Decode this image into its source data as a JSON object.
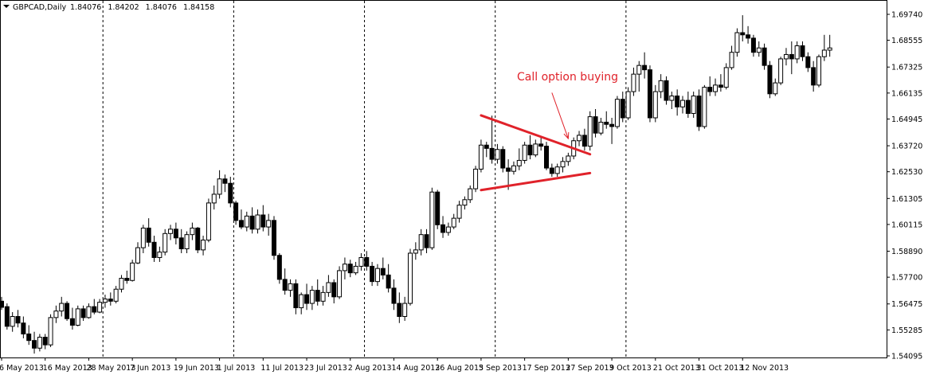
{
  "chart_data": {
    "type": "candlestick",
    "title": "GBPCAD,Daily",
    "ohlc_header": [
      "1.84076",
      "1.84202",
      "1.84076",
      "1.84158"
    ],
    "x_tick_labels": [
      "6 May 2013",
      "16 May 2013",
      "28 May 2013",
      "7 Jun 2013",
      "19 Jun 2013",
      "1 Jul 2013",
      "11 Jul 2013",
      "23 Jul 2013",
      "2 Aug 2013",
      "14 Aug 2013",
      "26 Aug 2013",
      "5 Sep 2013",
      "17 Sep 2013",
      "27 Sep 2013",
      "9 Oct 2013",
      "21 Oct 2013",
      "31 Oct 2013",
      "12 Nov 2013"
    ],
    "y_tick_labels": [
      "1.69740",
      "1.68555",
      "1.67325",
      "1.66135",
      "1.64945",
      "1.63720",
      "1.62530",
      "1.61305",
      "1.60115",
      "1.58890",
      "1.57700",
      "1.56475",
      "1.55285",
      "1.54095"
    ],
    "ylim": [
      1.5395,
      1.7029
    ],
    "grid": true,
    "colors": {
      "bull_body": "#ffffff",
      "bear_body": "#000000",
      "outline": "#000000",
      "annotation": "#e0222a"
    },
    "annotation": {
      "text": "Call option buying"
    },
    "pattern": {
      "name": "symmetrical-triangle",
      "upper_line": {
        "from": {
          "index": 88,
          "price": 1.6511
        },
        "to": {
          "index": 108,
          "price": 1.6333
        }
      },
      "lower_line": {
        "from": {
          "index": 88,
          "price": 1.6169
        },
        "to": {
          "index": 108,
          "price": 1.6247
        }
      },
      "arrow": {
        "from": {
          "index": 101,
          "price": 1.6615
        },
        "to": {
          "index": 104,
          "price": 1.6405
        }
      }
    },
    "candles": [
      {
        "o": 1.566,
        "h": 1.568,
        "l": 1.562,
        "c": 1.5632
      },
      {
        "o": 1.5635,
        "h": 1.565,
        "l": 1.553,
        "c": 1.5545
      },
      {
        "o": 1.5545,
        "h": 1.561,
        "l": 1.552,
        "c": 1.559
      },
      {
        "o": 1.559,
        "h": 1.562,
        "l": 1.554,
        "c": 1.556
      },
      {
        "o": 1.556,
        "h": 1.559,
        "l": 1.549,
        "c": 1.551
      },
      {
        "o": 1.551,
        "h": 1.555,
        "l": 1.546,
        "c": 1.548
      },
      {
        "o": 1.548,
        "h": 1.552,
        "l": 1.542,
        "c": 1.5445
      },
      {
        "o": 1.5445,
        "h": 1.551,
        "l": 1.543,
        "c": 1.5495
      },
      {
        "o": 1.5495,
        "h": 1.551,
        "l": 1.544,
        "c": 1.546
      },
      {
        "o": 1.546,
        "h": 1.56,
        "l": 1.545,
        "c": 1.5585
      },
      {
        "o": 1.5585,
        "h": 1.564,
        "l": 1.556,
        "c": 1.5615
      },
      {
        "o": 1.5615,
        "h": 1.568,
        "l": 1.559,
        "c": 1.565
      },
      {
        "o": 1.565,
        "h": 1.566,
        "l": 1.557,
        "c": 1.558
      },
      {
        "o": 1.558,
        "h": 1.563,
        "l": 1.553,
        "c": 1.555
      },
      {
        "o": 1.555,
        "h": 1.564,
        "l": 1.5545,
        "c": 1.5625
      },
      {
        "o": 1.5625,
        "h": 1.564,
        "l": 1.557,
        "c": 1.5585
      },
      {
        "o": 1.5585,
        "h": 1.565,
        "l": 1.558,
        "c": 1.5635
      },
      {
        "o": 1.5635,
        "h": 1.567,
        "l": 1.56,
        "c": 1.561
      },
      {
        "o": 1.561,
        "h": 1.567,
        "l": 1.5605,
        "c": 1.5655
      },
      {
        "o": 1.5655,
        "h": 1.569,
        "l": 1.563,
        "c": 1.567
      },
      {
        "o": 1.567,
        "h": 1.57,
        "l": 1.564,
        "c": 1.566
      },
      {
        "o": 1.566,
        "h": 1.573,
        "l": 1.565,
        "c": 1.5715
      },
      {
        "o": 1.5715,
        "h": 1.578,
        "l": 1.57,
        "c": 1.5765
      },
      {
        "o": 1.5765,
        "h": 1.58,
        "l": 1.574,
        "c": 1.5755
      },
      {
        "o": 1.5755,
        "h": 1.585,
        "l": 1.575,
        "c": 1.5835
      },
      {
        "o": 1.5835,
        "h": 1.593,
        "l": 1.583,
        "c": 1.5905
      },
      {
        "o": 1.5905,
        "h": 1.601,
        "l": 1.588,
        "c": 1.5995
      },
      {
        "o": 1.5995,
        "h": 1.604,
        "l": 1.591,
        "c": 1.593
      },
      {
        "o": 1.593,
        "h": 1.596,
        "l": 1.584,
        "c": 1.586
      },
      {
        "o": 1.586,
        "h": 1.591,
        "l": 1.584,
        "c": 1.5885
      },
      {
        "o": 1.5885,
        "h": 1.599,
        "l": 1.587,
        "c": 1.597
      },
      {
        "o": 1.597,
        "h": 1.601,
        "l": 1.594,
        "c": 1.599
      },
      {
        "o": 1.599,
        "h": 1.602,
        "l": 1.592,
        "c": 1.595
      },
      {
        "o": 1.595,
        "h": 1.599,
        "l": 1.588,
        "c": 1.59
      },
      {
        "o": 1.59,
        "h": 1.598,
        "l": 1.588,
        "c": 1.5965
      },
      {
        "o": 1.5965,
        "h": 1.602,
        "l": 1.594,
        "c": 1.5995
      },
      {
        "o": 1.5995,
        "h": 1.6,
        "l": 1.588,
        "c": 1.5895
      },
      {
        "o": 1.5895,
        "h": 1.596,
        "l": 1.587,
        "c": 1.594
      },
      {
        "o": 1.594,
        "h": 1.613,
        "l": 1.593,
        "c": 1.611
      },
      {
        "o": 1.611,
        "h": 1.619,
        "l": 1.608,
        "c": 1.615
      },
      {
        "o": 1.615,
        "h": 1.626,
        "l": 1.613,
        "c": 1.622
      },
      {
        "o": 1.622,
        "h": 1.624,
        "l": 1.616,
        "c": 1.62
      },
      {
        "o": 1.62,
        "h": 1.623,
        "l": 1.609,
        "c": 1.611
      },
      {
        "o": 1.611,
        "h": 1.612,
        "l": 1.601,
        "c": 1.603
      },
      {
        "o": 1.603,
        "h": 1.608,
        "l": 1.599,
        "c": 1.6
      },
      {
        "o": 1.6,
        "h": 1.607,
        "l": 1.598,
        "c": 1.605
      },
      {
        "o": 1.605,
        "h": 1.609,
        "l": 1.597,
        "c": 1.599
      },
      {
        "o": 1.599,
        "h": 1.608,
        "l": 1.597,
        "c": 1.6055
      },
      {
        "o": 1.6055,
        "h": 1.61,
        "l": 1.598,
        "c": 1.6
      },
      {
        "o": 1.6,
        "h": 1.606,
        "l": 1.596,
        "c": 1.603
      },
      {
        "o": 1.603,
        "h": 1.605,
        "l": 1.585,
        "c": 1.587
      },
      {
        "o": 1.587,
        "h": 1.588,
        "l": 1.574,
        "c": 1.576
      },
      {
        "o": 1.576,
        "h": 1.581,
        "l": 1.569,
        "c": 1.571
      },
      {
        "o": 1.571,
        "h": 1.576,
        "l": 1.568,
        "c": 1.574
      },
      {
        "o": 1.574,
        "h": 1.576,
        "l": 1.56,
        "c": 1.563
      },
      {
        "o": 1.563,
        "h": 1.57,
        "l": 1.56,
        "c": 1.569
      },
      {
        "o": 1.569,
        "h": 1.574,
        "l": 1.562,
        "c": 1.565
      },
      {
        "o": 1.565,
        "h": 1.573,
        "l": 1.562,
        "c": 1.571
      },
      {
        "o": 1.571,
        "h": 1.576,
        "l": 1.564,
        "c": 1.566
      },
      {
        "o": 1.566,
        "h": 1.573,
        "l": 1.564,
        "c": 1.57
      },
      {
        "o": 1.57,
        "h": 1.578,
        "l": 1.568,
        "c": 1.5745
      },
      {
        "o": 1.5745,
        "h": 1.576,
        "l": 1.565,
        "c": 1.568
      },
      {
        "o": 1.568,
        "h": 1.582,
        "l": 1.567,
        "c": 1.58
      },
      {
        "o": 1.58,
        "h": 1.586,
        "l": 1.576,
        "c": 1.583
      },
      {
        "o": 1.583,
        "h": 1.585,
        "l": 1.577,
        "c": 1.579
      },
      {
        "o": 1.579,
        "h": 1.584,
        "l": 1.578,
        "c": 1.582
      },
      {
        "o": 1.582,
        "h": 1.588,
        "l": 1.58,
        "c": 1.586
      },
      {
        "o": 1.586,
        "h": 1.589,
        "l": 1.58,
        "c": 1.582
      },
      {
        "o": 1.582,
        "h": 1.584,
        "l": 1.573,
        "c": 1.575
      },
      {
        "o": 1.575,
        "h": 1.583,
        "l": 1.573,
        "c": 1.581
      },
      {
        "o": 1.581,
        "h": 1.586,
        "l": 1.576,
        "c": 1.578
      },
      {
        "o": 1.578,
        "h": 1.583,
        "l": 1.57,
        "c": 1.572
      },
      {
        "o": 1.572,
        "h": 1.576,
        "l": 1.562,
        "c": 1.565
      },
      {
        "o": 1.565,
        "h": 1.57,
        "l": 1.556,
        "c": 1.559
      },
      {
        "o": 1.559,
        "h": 1.568,
        "l": 1.557,
        "c": 1.565
      },
      {
        "o": 1.565,
        "h": 1.59,
        "l": 1.564,
        "c": 1.588
      },
      {
        "o": 1.588,
        "h": 1.593,
        "l": 1.585,
        "c": 1.5895
      },
      {
        "o": 1.5895,
        "h": 1.599,
        "l": 1.587,
        "c": 1.5965
      },
      {
        "o": 1.5965,
        "h": 1.599,
        "l": 1.588,
        "c": 1.5905
      },
      {
        "o": 1.5905,
        "h": 1.618,
        "l": 1.5895,
        "c": 1.616
      },
      {
        "o": 1.616,
        "h": 1.617,
        "l": 1.599,
        "c": 1.601
      },
      {
        "o": 1.601,
        "h": 1.605,
        "l": 1.595,
        "c": 1.5975
      },
      {
        "o": 1.5975,
        "h": 1.602,
        "l": 1.596,
        "c": 1.6
      },
      {
        "o": 1.6,
        "h": 1.606,
        "l": 1.599,
        "c": 1.604
      },
      {
        "o": 1.604,
        "h": 1.612,
        "l": 1.602,
        "c": 1.61
      },
      {
        "o": 1.61,
        "h": 1.614,
        "l": 1.608,
        "c": 1.6125
      },
      {
        "o": 1.6125,
        "h": 1.619,
        "l": 1.611,
        "c": 1.6175
      },
      {
        "o": 1.6175,
        "h": 1.628,
        "l": 1.616,
        "c": 1.6265
      },
      {
        "o": 1.6265,
        "h": 1.64,
        "l": 1.625,
        "c": 1.6375
      },
      {
        "o": 1.6375,
        "h": 1.639,
        "l": 1.632,
        "c": 1.636
      },
      {
        "o": 1.636,
        "h": 1.651,
        "l": 1.629,
        "c": 1.631
      },
      {
        "o": 1.631,
        "h": 1.638,
        "l": 1.629,
        "c": 1.6355
      },
      {
        "o": 1.6355,
        "h": 1.637,
        "l": 1.625,
        "c": 1.627
      },
      {
        "o": 1.627,
        "h": 1.631,
        "l": 1.617,
        "c": 1.6255
      },
      {
        "o": 1.6255,
        "h": 1.63,
        "l": 1.624,
        "c": 1.628
      },
      {
        "o": 1.628,
        "h": 1.636,
        "l": 1.626,
        "c": 1.6305
      },
      {
        "o": 1.6305,
        "h": 1.639,
        "l": 1.629,
        "c": 1.6375
      },
      {
        "o": 1.6375,
        "h": 1.642,
        "l": 1.631,
        "c": 1.633
      },
      {
        "o": 1.633,
        "h": 1.64,
        "l": 1.632,
        "c": 1.638
      },
      {
        "o": 1.638,
        "h": 1.641,
        "l": 1.635,
        "c": 1.637
      },
      {
        "o": 1.637,
        "h": 1.639,
        "l": 1.626,
        "c": 1.627
      },
      {
        "o": 1.627,
        "h": 1.629,
        "l": 1.623,
        "c": 1.6245
      },
      {
        "o": 1.6245,
        "h": 1.629,
        "l": 1.623,
        "c": 1.6275
      },
      {
        "o": 1.6275,
        "h": 1.632,
        "l": 1.625,
        "c": 1.63
      },
      {
        "o": 1.63,
        "h": 1.634,
        "l": 1.628,
        "c": 1.6325
      },
      {
        "o": 1.6325,
        "h": 1.641,
        "l": 1.631,
        "c": 1.6395
      },
      {
        "o": 1.6395,
        "h": 1.644,
        "l": 1.637,
        "c": 1.642
      },
      {
        "o": 1.642,
        "h": 1.645,
        "l": 1.635,
        "c": 1.637
      },
      {
        "o": 1.637,
        "h": 1.653,
        "l": 1.635,
        "c": 1.6505
      },
      {
        "o": 1.6505,
        "h": 1.654,
        "l": 1.641,
        "c": 1.643
      },
      {
        "o": 1.643,
        "h": 1.65,
        "l": 1.642,
        "c": 1.648
      },
      {
        "o": 1.648,
        "h": 1.653,
        "l": 1.645,
        "c": 1.647
      },
      {
        "o": 1.647,
        "h": 1.65,
        "l": 1.638,
        "c": 1.646
      },
      {
        "o": 1.646,
        "h": 1.66,
        "l": 1.645,
        "c": 1.6585
      },
      {
        "o": 1.6585,
        "h": 1.662,
        "l": 1.648,
        "c": 1.65
      },
      {
        "o": 1.65,
        "h": 1.664,
        "l": 1.649,
        "c": 1.662
      },
      {
        "o": 1.662,
        "h": 1.673,
        "l": 1.66,
        "c": 1.67
      },
      {
        "o": 1.67,
        "h": 1.676,
        "l": 1.662,
        "c": 1.674
      },
      {
        "o": 1.674,
        "h": 1.68,
        "l": 1.668,
        "c": 1.672
      },
      {
        "o": 1.672,
        "h": 1.674,
        "l": 1.648,
        "c": 1.65
      },
      {
        "o": 1.65,
        "h": 1.665,
        "l": 1.648,
        "c": 1.662
      },
      {
        "o": 1.662,
        "h": 1.67,
        "l": 1.659,
        "c": 1.667
      },
      {
        "o": 1.667,
        "h": 1.669,
        "l": 1.656,
        "c": 1.658
      },
      {
        "o": 1.658,
        "h": 1.662,
        "l": 1.654,
        "c": 1.66
      },
      {
        "o": 1.66,
        "h": 1.663,
        "l": 1.651,
        "c": 1.655
      },
      {
        "o": 1.655,
        "h": 1.66,
        "l": 1.652,
        "c": 1.658
      },
      {
        "o": 1.658,
        "h": 1.662,
        "l": 1.65,
        "c": 1.652
      },
      {
        "o": 1.652,
        "h": 1.662,
        "l": 1.65,
        "c": 1.66
      },
      {
        "o": 1.66,
        "h": 1.663,
        "l": 1.644,
        "c": 1.646
      },
      {
        "o": 1.646,
        "h": 1.665,
        "l": 1.645,
        "c": 1.664
      },
      {
        "o": 1.664,
        "h": 1.669,
        "l": 1.66,
        "c": 1.662
      },
      {
        "o": 1.662,
        "h": 1.668,
        "l": 1.66,
        "c": 1.665
      },
      {
        "o": 1.665,
        "h": 1.67,
        "l": 1.662,
        "c": 1.664
      },
      {
        "o": 1.664,
        "h": 1.675,
        "l": 1.663,
        "c": 1.673
      },
      {
        "o": 1.673,
        "h": 1.683,
        "l": 1.672,
        "c": 1.68
      },
      {
        "o": 1.68,
        "h": 1.691,
        "l": 1.678,
        "c": 1.689
      },
      {
        "o": 1.689,
        "h": 1.697,
        "l": 1.685,
        "c": 1.688
      },
      {
        "o": 1.688,
        "h": 1.692,
        "l": 1.684,
        "c": 1.6865
      },
      {
        "o": 1.6865,
        "h": 1.688,
        "l": 1.678,
        "c": 1.68
      },
      {
        "o": 1.68,
        "h": 1.685,
        "l": 1.678,
        "c": 1.682
      },
      {
        "o": 1.682,
        "h": 1.684,
        "l": 1.672,
        "c": 1.674
      },
      {
        "o": 1.674,
        "h": 1.676,
        "l": 1.659,
        "c": 1.661
      },
      {
        "o": 1.661,
        "h": 1.668,
        "l": 1.66,
        "c": 1.666
      },
      {
        "o": 1.666,
        "h": 1.678,
        "l": 1.665,
        "c": 1.677
      },
      {
        "o": 1.677,
        "h": 1.682,
        "l": 1.674,
        "c": 1.679
      },
      {
        "o": 1.679,
        "h": 1.685,
        "l": 1.67,
        "c": 1.677
      },
      {
        "o": 1.677,
        "h": 1.685,
        "l": 1.675,
        "c": 1.683
      },
      {
        "o": 1.683,
        "h": 1.685,
        "l": 1.676,
        "c": 1.678
      },
      {
        "o": 1.678,
        "h": 1.68,
        "l": 1.671,
        "c": 1.673
      },
      {
        "o": 1.673,
        "h": 1.676,
        "l": 1.662,
        "c": 1.665
      },
      {
        "o": 1.665,
        "h": 1.679,
        "l": 1.664,
        "c": 1.678
      },
      {
        "o": 1.678,
        "h": 1.688,
        "l": 1.676,
        "c": 1.681
      },
      {
        "o": 1.681,
        "h": 1.688,
        "l": 1.678,
        "c": 1.682
      }
    ]
  }
}
